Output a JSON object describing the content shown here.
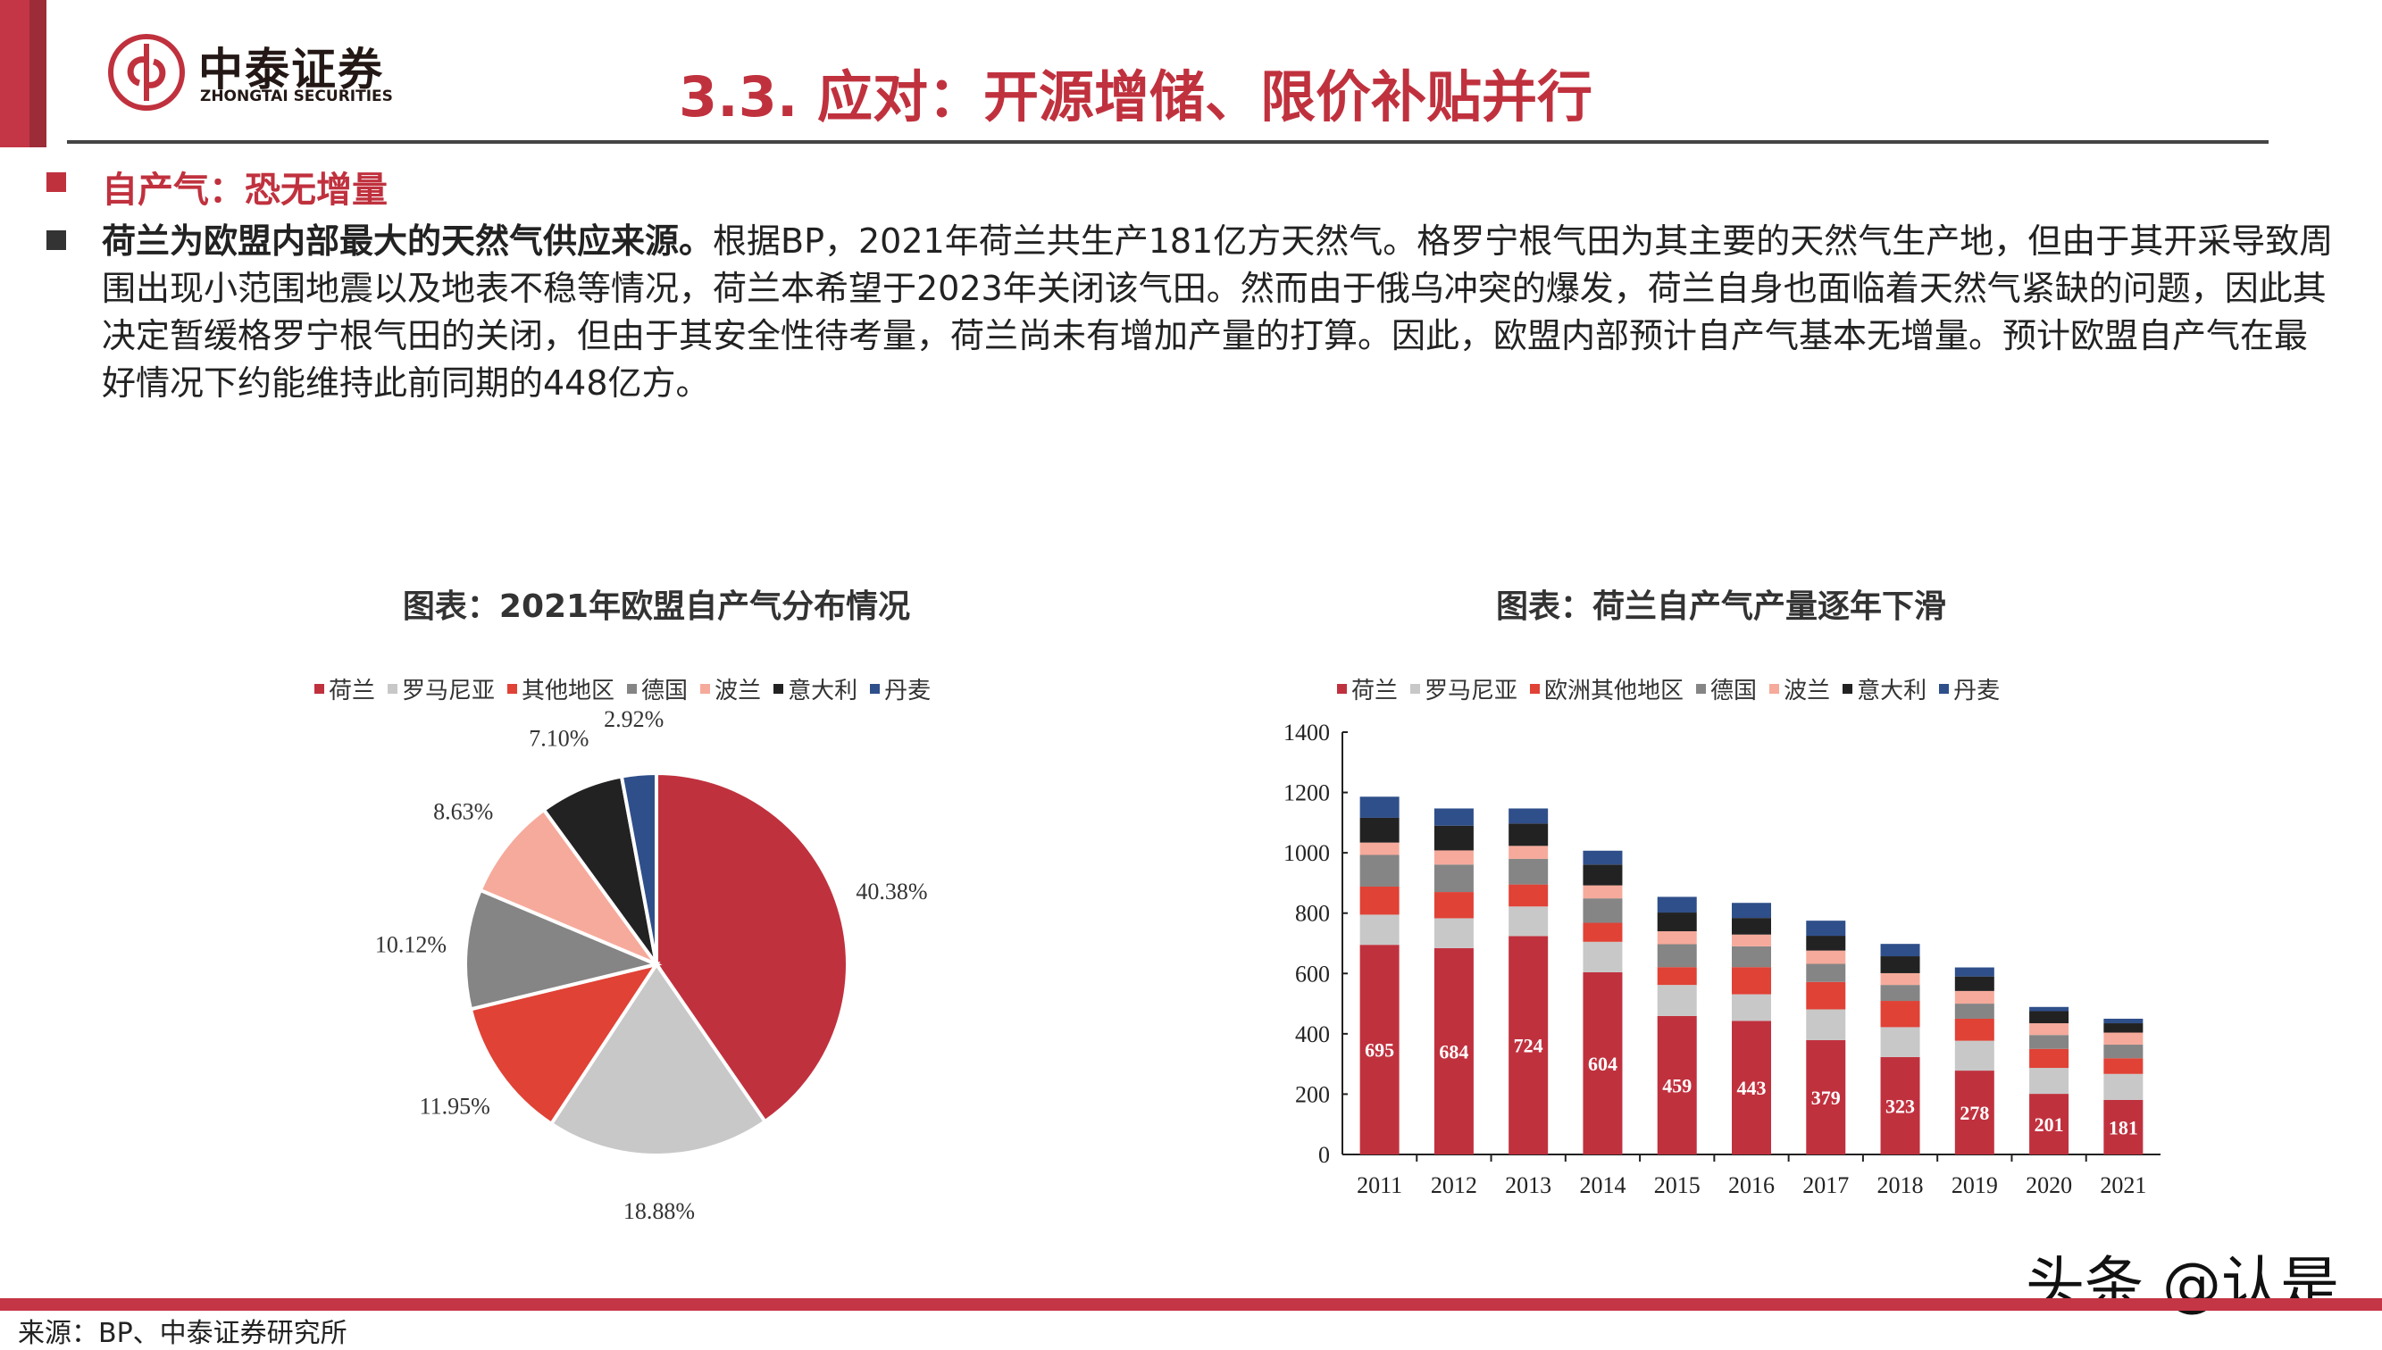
{
  "header": {
    "logo_cn": "中泰证券",
    "logo_en": "ZHONGTAI SECURITIES",
    "title": "3.3.  应对：开源增储、限价补贴并行"
  },
  "body": {
    "subheading": "自产气：恐无增量",
    "paragraph_bold": "荷兰为欧盟内部最大的天然气供应来源。",
    "paragraph_rest": "根据BP，2021年荷兰共生产181亿方天然气。格罗宁根气田为其主要的天然气生产地，但由于其开采导致周围出现小范围地震以及地表不稳等情况，荷兰本希望于2023年关闭该气田。然而由于俄乌冲突的爆发，荷兰自身也面临着天然气紧缺的问题，因此其决定暂缓格罗宁根气田的关闭，但由于其安全性待考量，荷兰尚未有增加产量的打算。因此，欧盟内部预计自产气基本无增量。预计欧盟自产气在最好情况下约能维持此前同期的448亿方。"
  },
  "footer": {
    "source": "来源：BP、中泰证券研究所",
    "watermark": "头条 @认是"
  },
  "chart_data": [
    {
      "type": "pie",
      "title": "图表：2021年欧盟自产气分布情况",
      "legend_position": "top",
      "categories": [
        "荷兰",
        "罗马尼亚",
        "其他地区",
        "德国",
        "波兰",
        "意大利",
        "丹麦"
      ],
      "values": [
        40.38,
        18.88,
        11.95,
        10.12,
        8.63,
        7.1,
        2.92
      ],
      "labels": [
        "40.38%",
        "18.88%",
        "11.95%",
        "10.12%",
        "8.63%",
        "7.10%",
        "2.92%"
      ],
      "colors": [
        "#c0313e",
        "#c8c8c8",
        "#e04236",
        "#858585",
        "#f6aa9b",
        "#222222",
        "#2f4f8a"
      ]
    },
    {
      "type": "bar",
      "stacked": true,
      "title": "图表：荷兰自产气产量逐年下滑",
      "legend_position": "top",
      "categories": [
        "2011",
        "2012",
        "2013",
        "2014",
        "2015",
        "2016",
        "2017",
        "2018",
        "2019",
        "2020",
        "2021"
      ],
      "ylim": [
        0,
        1400
      ],
      "yticks": [
        0,
        200,
        400,
        600,
        800,
        1000,
        1200,
        1400
      ],
      "grid": false,
      "series": [
        {
          "name": "荷兰",
          "color": "#c0313e",
          "values": [
            695,
            684,
            724,
            604,
            459,
            443,
            379,
            323,
            278,
            201,
            181
          ],
          "data_labels": true
        },
        {
          "name": "罗马尼亚",
          "color": "#c8c8c8",
          "values": [
            100,
            99,
            98,
            101,
            103,
            88,
            102,
            99,
            99,
            86,
            86
          ]
        },
        {
          "name": "欧洲其他地区",
          "color": "#e04236",
          "values": [
            93,
            87,
            73,
            63,
            59,
            90,
            91,
            87,
            73,
            63,
            52
          ]
        },
        {
          "name": "德国",
          "color": "#858585",
          "values": [
            105,
            91,
            85,
            81,
            76,
            69,
            60,
            53,
            50,
            46,
            45
          ]
        },
        {
          "name": "波兰",
          "color": "#f6aa9b",
          "values": [
            41,
            47,
            43,
            43,
            43,
            39,
            44,
            39,
            42,
            39,
            40
          ]
        },
        {
          "name": "意大利",
          "color": "#222222",
          "values": [
            82,
            82,
            74,
            69,
            62,
            55,
            49,
            56,
            48,
            40,
            31
          ]
        },
        {
          "name": "丹麦",
          "color": "#2f4f8a",
          "values": [
            70,
            57,
            50,
            46,
            52,
            50,
            50,
            41,
            30,
            14,
            15
          ]
        }
      ]
    }
  ]
}
